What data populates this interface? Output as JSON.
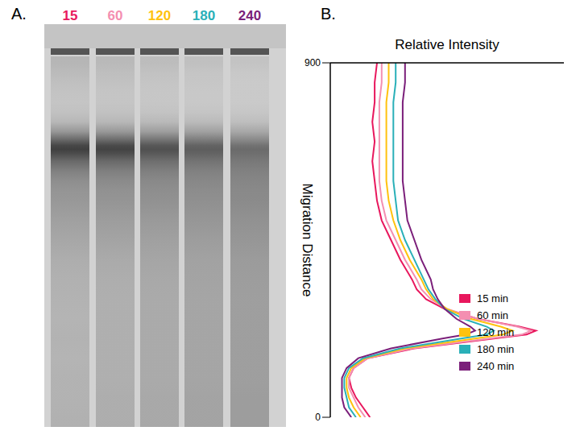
{
  "panel_labels": [
    "A.",
    "B."
  ],
  "gel": {
    "lanes": [
      "15",
      "60",
      "120",
      "180",
      "240"
    ]
  },
  "chart_data": {
    "type": "line",
    "title": "Relative Intensity",
    "y_label": "Migration Distance",
    "y": [
      0,
      25,
      50,
      75,
      100,
      125,
      150,
      175,
      200,
      210,
      220,
      230,
      250,
      275,
      300,
      325,
      350,
      400,
      450,
      500,
      550,
      600,
      650,
      700,
      750,
      800,
      850,
      900
    ],
    "ylim": [
      0,
      900
    ],
    "yticks": [
      0,
      900
    ],
    "xlim": [
      0,
      1
    ],
    "tick_labels": "y",
    "grid": false,
    "legend": "lower right",
    "series": [
      {
        "name": "15 min",
        "color": "#e8175d",
        "values": [
          0.17,
          0.14,
          0.11,
          0.09,
          0.08,
          0.1,
          0.16,
          0.36,
          0.7,
          0.84,
          0.88,
          0.81,
          0.63,
          0.49,
          0.41,
          0.37,
          0.35,
          0.3,
          0.26,
          0.22,
          0.2,
          0.19,
          0.18,
          0.19,
          0.18,
          0.19,
          0.19,
          0.2
        ]
      },
      {
        "name": "60 min",
        "color": "#f48fb1",
        "values": [
          0.15,
          0.12,
          0.1,
          0.08,
          0.08,
          0.1,
          0.16,
          0.35,
          0.68,
          0.82,
          0.86,
          0.8,
          0.63,
          0.5,
          0.43,
          0.39,
          0.37,
          0.32,
          0.28,
          0.24,
          0.22,
          0.21,
          0.21,
          0.21,
          0.21,
          0.21,
          0.22,
          0.22
        ]
      },
      {
        "name": "120 min",
        "color": "#ffc20e",
        "values": [
          0.13,
          0.1,
          0.08,
          0.07,
          0.07,
          0.09,
          0.15,
          0.32,
          0.62,
          0.74,
          0.78,
          0.73,
          0.6,
          0.5,
          0.44,
          0.41,
          0.39,
          0.34,
          0.3,
          0.27,
          0.25,
          0.24,
          0.24,
          0.24,
          0.24,
          0.24,
          0.25,
          0.25
        ]
      },
      {
        "name": "180 min",
        "color": "#2ab0b8",
        "values": [
          0.11,
          0.08,
          0.07,
          0.06,
          0.06,
          0.08,
          0.14,
          0.3,
          0.56,
          0.67,
          0.7,
          0.67,
          0.57,
          0.49,
          0.45,
          0.42,
          0.4,
          0.36,
          0.32,
          0.29,
          0.28,
          0.27,
          0.27,
          0.27,
          0.27,
          0.27,
          0.28,
          0.28
        ]
      },
      {
        "name": "240 min",
        "color": "#7b1f7a",
        "values": [
          0.09,
          0.06,
          0.05,
          0.05,
          0.05,
          0.07,
          0.12,
          0.26,
          0.48,
          0.58,
          0.62,
          0.6,
          0.54,
          0.49,
          0.46,
          0.44,
          0.43,
          0.39,
          0.36,
          0.33,
          0.32,
          0.31,
          0.31,
          0.31,
          0.31,
          0.31,
          0.32,
          0.32
        ]
      }
    ]
  }
}
